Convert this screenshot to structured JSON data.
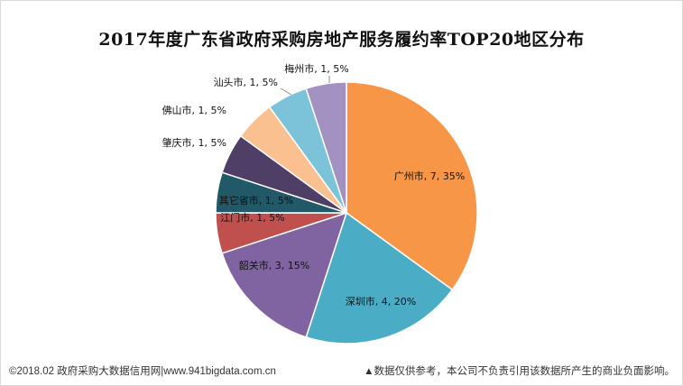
{
  "chart_data": {
    "type": "pie",
    "title": "2017年度广东省政府采购房地产服务履约率TOP20地区分布",
    "slices": [
      {
        "name": "广州市",
        "value": 7,
        "percent": "35%",
        "label": "广州市, 7, 35%",
        "color": "#f79646"
      },
      {
        "name": "深圳市",
        "value": 4,
        "percent": "20%",
        "label": "深圳市, 4, 20%",
        "color": "#4bacc6"
      },
      {
        "name": "韶关市",
        "value": 3,
        "percent": "15%",
        "label": "韶关市, 3, 15%",
        "color": "#8064a2"
      },
      {
        "name": "江门市",
        "value": 1,
        "percent": "5%",
        "label": "江门市, 1, 5%",
        "color": "#c0504d"
      },
      {
        "name": "其它省市",
        "value": 1,
        "percent": "5%",
        "label": "其它省市, 1, 5%",
        "color": "#215968"
      },
      {
        "name": "肇庆市",
        "value": 1,
        "percent": "5%",
        "label": "肇庆市, 1, 5%",
        "color": "#4f3e66"
      },
      {
        "name": "佛山市",
        "value": 1,
        "percent": "5%",
        "label": "佛山市, 1, 5%",
        "color": "#fac090"
      },
      {
        "name": "汕头市",
        "value": 1,
        "percent": "5%",
        "label": "汕头市, 1, 5%",
        "color": "#7cc3d9"
      },
      {
        "name": "梅州市",
        "value": 1,
        "percent": "5%",
        "label": "梅州市, 1, 5%",
        "color": "#a291c1"
      }
    ]
  },
  "footer": {
    "left": "©2018.02 政府采购大数据信用网|www.941bigdata.com.cn",
    "right": "▲数据仅供参考，本公司不负责引用该数据所产生的商业负面影响。"
  }
}
